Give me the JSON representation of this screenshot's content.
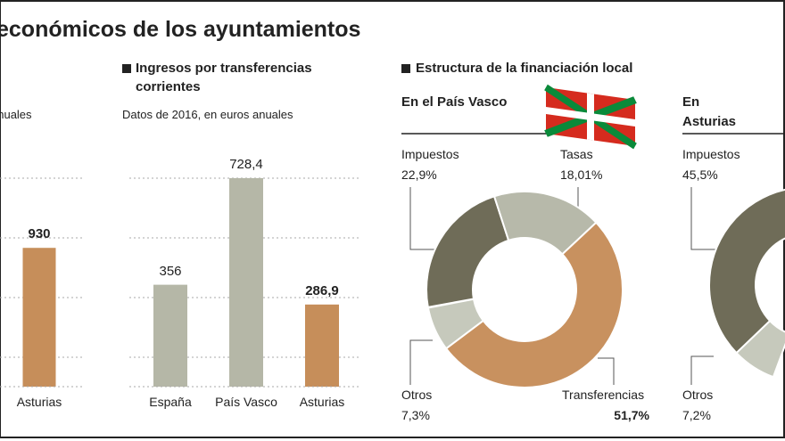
{
  "title": "económicos de los ayuntamientos",
  "chart_data": [
    {
      "type": "bar",
      "subtitle": "anuales",
      "categories": [
        "Asturias"
      ],
      "values": [
        930
      ],
      "colors": [
        "#c68e5a"
      ],
      "ylim": [
        0,
        1600
      ]
    },
    {
      "type": "bar",
      "title": "Ingresos por transferencias corrientes",
      "subtitle": "Datos de 2016, en euros anuales",
      "categories": [
        "España",
        "País Vasco",
        "Asturias"
      ],
      "values": [
        356,
        728.4,
        286.9
      ],
      "value_labels": [
        "356",
        "728,4",
        "286,9"
      ],
      "colors": [
        "#b5b7a7",
        "#b5b7a7",
        "#c68e5a"
      ],
      "ylim": [
        0,
        834
      ]
    },
    {
      "type": "pie",
      "title": "Estructura de la financiación local",
      "subtitle": "En el País Vasco",
      "categories": [
        "Impuestos",
        "Tasas",
        "Transferencias",
        "Otros"
      ],
      "values": [
        22.9,
        18.01,
        51.7,
        7.3
      ],
      "value_labels": [
        "22,9%",
        "18,01%",
        "51,7%",
        "7,3%"
      ],
      "colors": [
        "#6f6c58",
        "#b7b9aa",
        "#c8915f",
        "#c6c9bc"
      ]
    },
    {
      "type": "pie",
      "subtitle": "En Asturias",
      "categories": [
        "Impuestos",
        "Otros"
      ],
      "values": [
        45.5,
        7.2
      ],
      "value_labels": [
        "45,5%",
        "7,2%"
      ],
      "colors": [
        "#6f6c58",
        "#c6c9bc"
      ]
    }
  ]
}
